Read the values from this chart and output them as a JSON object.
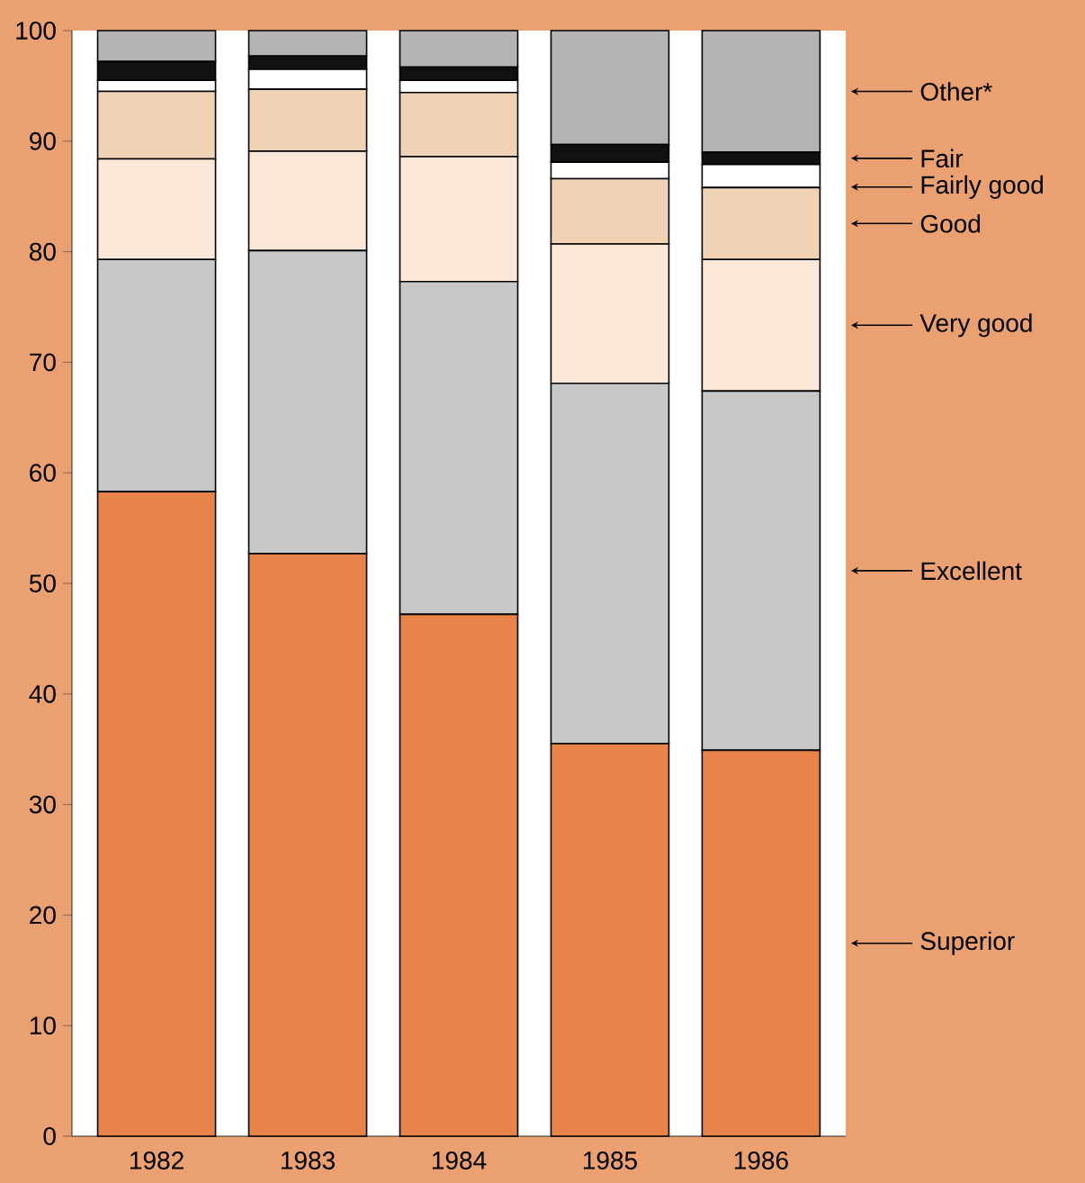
{
  "chart_data": {
    "type": "bar",
    "stacked": true,
    "categories": [
      "1982",
      "1983",
      "1984",
      "1985",
      "1986"
    ],
    "series": [
      {
        "name": "Superior",
        "color": "#e8844a",
        "values": [
          58.3,
          52.7,
          47.2,
          35.5,
          34.9
        ]
      },
      {
        "name": "Excellent",
        "color": "#c8c8c8",
        "values": [
          21.0,
          27.4,
          30.1,
          32.6,
          32.5
        ]
      },
      {
        "name": "Very good",
        "color": "#fbe8d8",
        "values": [
          9.1,
          9.0,
          11.3,
          12.6,
          11.9
        ]
      },
      {
        "name": "Good",
        "color": "#f0d2b4",
        "values": [
          6.1,
          5.6,
          5.8,
          5.9,
          6.5
        ]
      },
      {
        "name": "Fairly good",
        "color": "#ffffff",
        "values": [
          1.0,
          1.8,
          1.1,
          1.5,
          2.1
        ]
      },
      {
        "name": "Fair",
        "color": "#111111",
        "values": [
          1.7,
          1.2,
          1.2,
          1.6,
          1.1
        ]
      },
      {
        "name": "Other*",
        "color": "#b4b4b4",
        "values": [
          2.8,
          2.3,
          3.3,
          10.3,
          11.0
        ]
      }
    ],
    "ylim": [
      0,
      100
    ],
    "yticks": [
      0,
      10,
      20,
      30,
      40,
      50,
      60,
      70,
      80,
      90,
      100
    ],
    "legend": "right"
  }
}
